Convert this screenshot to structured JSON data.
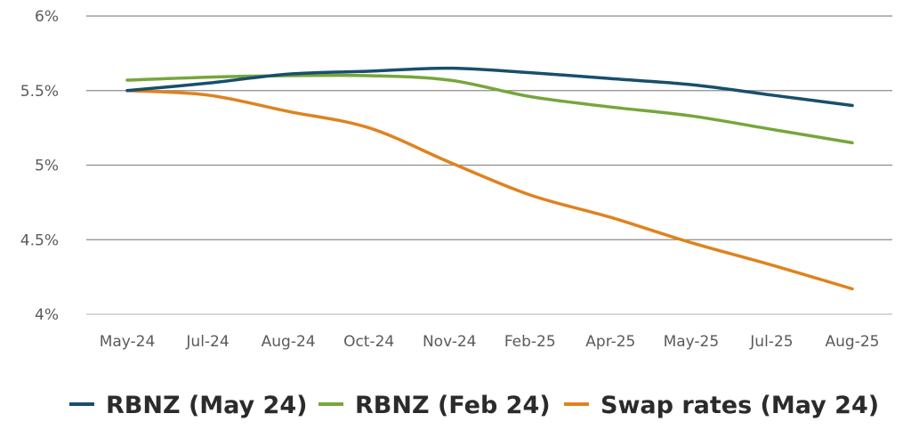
{
  "chart_data": {
    "type": "line",
    "title": "",
    "xlabel": "",
    "ylabel": "",
    "categories": [
      "May-24",
      "Jul-24",
      "Aug-24",
      "Oct-24",
      "Nov-24",
      "Feb-25",
      "Apr-25",
      "May-25",
      "Jul-25",
      "Aug-25"
    ],
    "ylim": [
      4,
      6
    ],
    "yticks": [
      {
        "value": 6,
        "label": "6%"
      },
      {
        "value": 5.5,
        "label": "5.5%"
      },
      {
        "value": 5,
        "label": "5%"
      },
      {
        "value": 4.5,
        "label": "4.5%"
      },
      {
        "value": 4,
        "label": "4%"
      }
    ],
    "grid": true,
    "legend_position": "bottom",
    "series": [
      {
        "name": "RBNZ (May 24)",
        "color": "#184f6b",
        "values": [
          5.5,
          5.55,
          5.61,
          5.63,
          5.65,
          5.62,
          5.58,
          5.54,
          5.47,
          5.4
        ]
      },
      {
        "name": "RBNZ (Feb 24)",
        "color": "#76a63a",
        "values": [
          5.57,
          5.59,
          5.6,
          5.6,
          5.57,
          5.46,
          5.39,
          5.33,
          5.24,
          5.15
        ]
      },
      {
        "name": "Swap rates (May 24)",
        "color": "#e0821e",
        "values": [
          5.5,
          5.47,
          5.36,
          5.25,
          5.02,
          4.8,
          4.65,
          4.48,
          4.33,
          4.17
        ]
      }
    ]
  }
}
